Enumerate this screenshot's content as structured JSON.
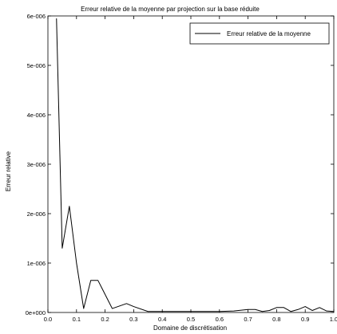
{
  "chart_data": {
    "type": "line",
    "title": "Erreur relative de la moyenne par projection sur la base réduite",
    "xlabel": "Domaine de discrétisation",
    "ylabel": "Erreur relative",
    "xlim": [
      0.0,
      1.0
    ],
    "ylim": [
      0.0,
      6e-06
    ],
    "x_ticks": [
      "0.0",
      "0.1",
      "0.2",
      "0.3",
      "0.4",
      "0.5",
      "0.6",
      "0.7",
      "0.8",
      "0.9",
      "1.0"
    ],
    "y_ticks": [
      "0e+000",
      "1e-006",
      "2e-006",
      "3e-006",
      "4e-006",
      "5e-006",
      "6e-006"
    ],
    "grid": false,
    "legend_position": "top-right",
    "series": [
      {
        "name": "Erreur relative de la moyenne",
        "color": "#000000",
        "x": [
          0.03,
          0.05,
          0.075,
          0.1,
          0.125,
          0.15,
          0.175,
          0.225,
          0.275,
          0.3,
          0.35,
          0.4,
          0.45,
          0.5,
          0.55,
          0.6,
          0.65,
          0.7,
          0.725,
          0.75,
          0.775,
          0.8,
          0.825,
          0.85,
          0.875,
          0.9,
          0.925,
          0.95,
          0.975,
          1.0
        ],
        "y": [
          5.95e-06,
          1.3e-06,
          2.15e-06,
          1e-06,
          8e-08,
          6.5e-07,
          6.5e-07,
          8e-08,
          1.8e-07,
          1.2e-07,
          2e-08,
          2e-08,
          2e-08,
          2e-08,
          2e-08,
          2e-08,
          3e-08,
          6e-08,
          6e-08,
          2e-08,
          4e-08,
          1e-07,
          1e-07,
          2e-08,
          6e-08,
          1.2e-07,
          4e-08,
          1e-07,
          3e-08,
          2e-08
        ]
      }
    ]
  }
}
